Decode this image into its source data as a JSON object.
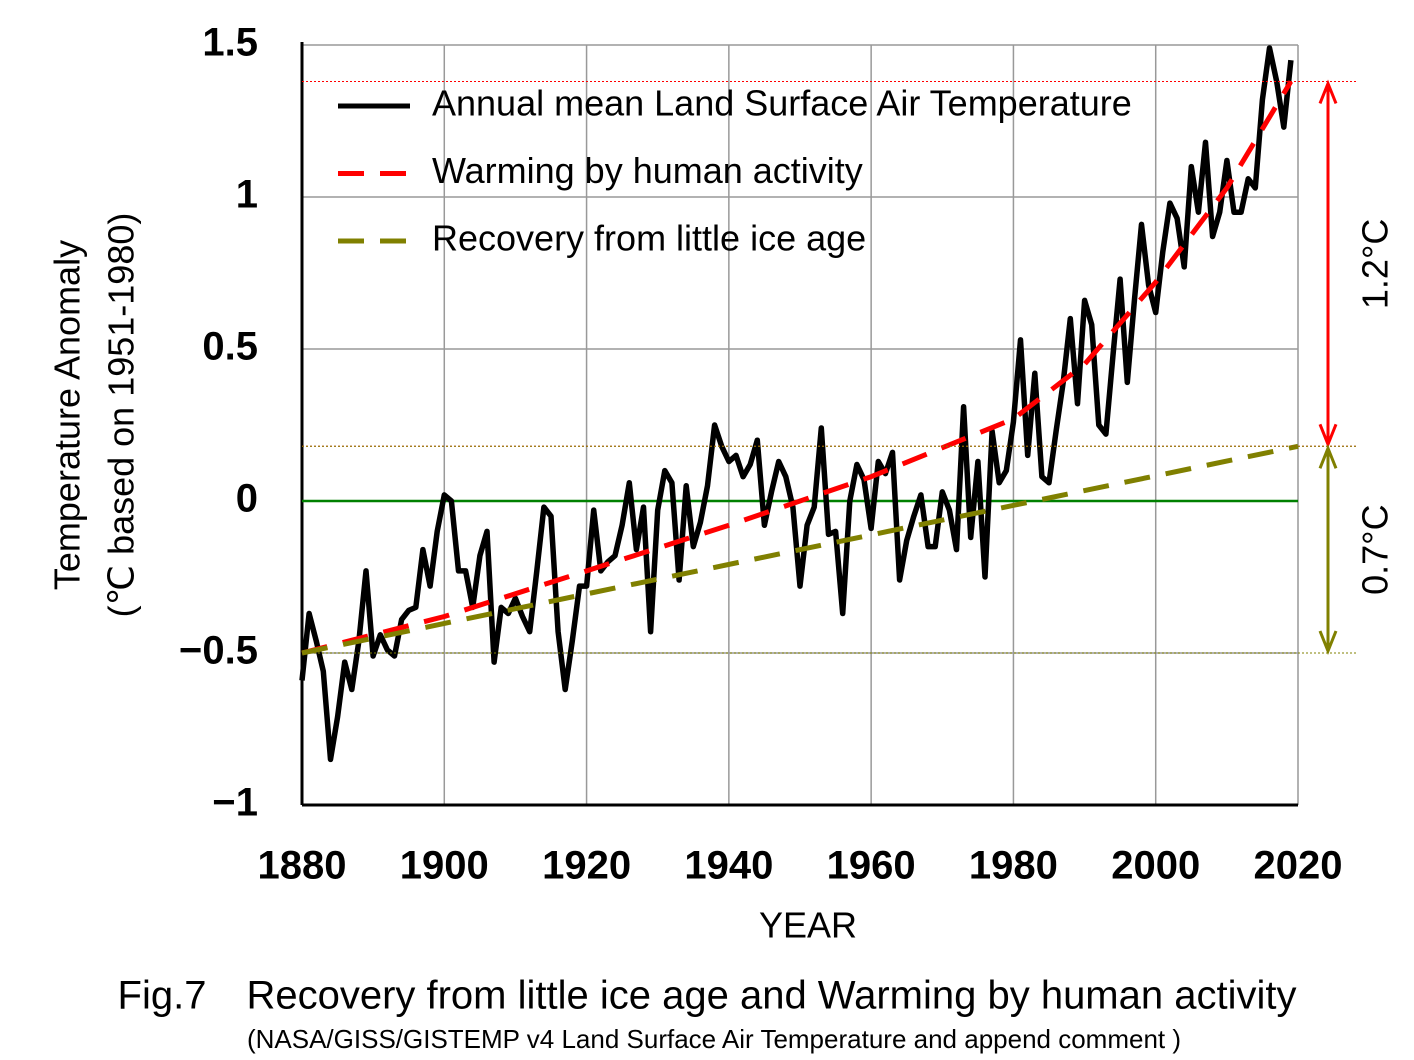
{
  "chart_data": {
    "type": "line",
    "xlabel": "YEAR",
    "ylabel": [
      "Temperature Anomaly",
      "(℃ based on 1951-1980)"
    ],
    "caption": "Fig.7　Recovery from little ice age and Warming by human activity",
    "source": "(NASA/GISS/GISTEMP v4 Land Surface Air Temperature and append comment )",
    "xlim": [
      1880,
      2020
    ],
    "ylim": [
      -1,
      1.5
    ],
    "xticks": [
      1880,
      1900,
      1920,
      1940,
      1960,
      1980,
      2000,
      2020
    ],
    "yticks": [
      {
        "value": -1,
        "label": "−1"
      },
      {
        "value": -0.5,
        "label": "−0.5"
      },
      0,
      0.5,
      1,
      1.5
    ],
    "grid": true,
    "legend": "upper left",
    "hline": {
      "value": 0,
      "color": "#008000"
    },
    "series": [
      {
        "name": "Annual mean Land Surface Air Temperature",
        "color": "#000000",
        "dash": false,
        "x": [
          1880,
          1881,
          1882,
          1883,
          1884,
          1885,
          1886,
          1887,
          1888,
          1889,
          1890,
          1891,
          1892,
          1893,
          1894,
          1895,
          1896,
          1897,
          1898,
          1899,
          1900,
          1901,
          1902,
          1903,
          1904,
          1905,
          1906,
          1907,
          1908,
          1909,
          1910,
          1911,
          1912,
          1913,
          1914,
          1915,
          1916,
          1917,
          1918,
          1919,
          1920,
          1921,
          1922,
          1923,
          1924,
          1925,
          1926,
          1927,
          1928,
          1929,
          1930,
          1931,
          1932,
          1933,
          1934,
          1935,
          1936,
          1937,
          1938,
          1939,
          1940,
          1941,
          1942,
          1943,
          1944,
          1945,
          1946,
          1947,
          1948,
          1949,
          1950,
          1951,
          1952,
          1953,
          1954,
          1955,
          1956,
          1957,
          1958,
          1959,
          1960,
          1961,
          1962,
          1963,
          1964,
          1965,
          1966,
          1967,
          1968,
          1969,
          1970,
          1971,
          1972,
          1973,
          1974,
          1975,
          1976,
          1977,
          1978,
          1979,
          1980,
          1981,
          1982,
          1983,
          1984,
          1985,
          1986,
          1987,
          1988,
          1989,
          1990,
          1991,
          1992,
          1993,
          1994,
          1995,
          1996,
          1997,
          1998,
          1999,
          2000,
          2001,
          2002,
          2003,
          2004,
          2005,
          2006,
          2007,
          2008,
          2009,
          2010,
          2011,
          2012,
          2013,
          2014,
          2015,
          2016,
          2017,
          2018,
          2019
        ],
        "values": [
          -0.59,
          -0.37,
          -0.46,
          -0.56,
          -0.85,
          -0.71,
          -0.53,
          -0.62,
          -0.46,
          -0.23,
          -0.51,
          -0.44,
          -0.49,
          -0.51,
          -0.39,
          -0.36,
          -0.35,
          -0.16,
          -0.28,
          -0.1,
          0.02,
          0.0,
          -0.23,
          -0.23,
          -0.35,
          -0.18,
          -0.1,
          -0.53,
          -0.35,
          -0.37,
          -0.32,
          -0.38,
          -0.43,
          -0.23,
          -0.02,
          -0.05,
          -0.43,
          -0.62,
          -0.46,
          -0.28,
          -0.28,
          -0.03,
          -0.23,
          -0.2,
          -0.18,
          -0.08,
          0.06,
          -0.16,
          -0.02,
          -0.43,
          -0.03,
          0.1,
          0.06,
          -0.26,
          0.05,
          -0.15,
          -0.07,
          0.05,
          0.25,
          0.18,
          0.13,
          0.15,
          0.08,
          0.12,
          0.2,
          -0.08,
          0.03,
          0.13,
          0.08,
          -0.02,
          -0.28,
          -0.08,
          -0.02,
          0.24,
          -0.11,
          -0.1,
          -0.37,
          0.0,
          0.12,
          0.07,
          -0.09,
          0.13,
          0.09,
          0.16,
          -0.26,
          -0.13,
          -0.05,
          0.02,
          -0.15,
          -0.15,
          0.03,
          -0.03,
          -0.16,
          0.31,
          -0.12,
          0.13,
          -0.25,
          0.23,
          0.06,
          0.1,
          0.26,
          0.53,
          0.15,
          0.42,
          0.08,
          0.06,
          0.23,
          0.39,
          0.6,
          0.32,
          0.66,
          0.58,
          0.25,
          0.22,
          0.48,
          0.73,
          0.39,
          0.66,
          0.91,
          0.71,
          0.62,
          0.82,
          0.98,
          0.93,
          0.77,
          1.1,
          0.95,
          1.18,
          0.87,
          0.95,
          1.12,
          0.95,
          0.95,
          1.06,
          1.03,
          1.32,
          1.49,
          1.38,
          1.23,
          1.45
        ]
      },
      {
        "name": "Warming by human activity",
        "color": "#ff0000",
        "dash": true,
        "x": [
          1880,
          1900,
          1920,
          1940,
          1960,
          1980,
          1990,
          2000,
          2010,
          2019
        ],
        "values": [
          -0.5,
          -0.38,
          -0.23,
          -0.08,
          0.08,
          0.27,
          0.45,
          0.72,
          1.03,
          1.38
        ]
      },
      {
        "name": "Recovery from little ice age",
        "color": "#808000",
        "dash": true,
        "x": [
          1880,
          2020
        ],
        "values": [
          -0.5,
          0.18
        ]
      }
    ],
    "annotations": [
      {
        "text": "1.2°C",
        "from": 0.18,
        "to": 1.38,
        "color": "#ff0000"
      },
      {
        "text": "0.7°C",
        "from": -0.5,
        "to": 0.18,
        "color": "#808000"
      }
    ]
  }
}
